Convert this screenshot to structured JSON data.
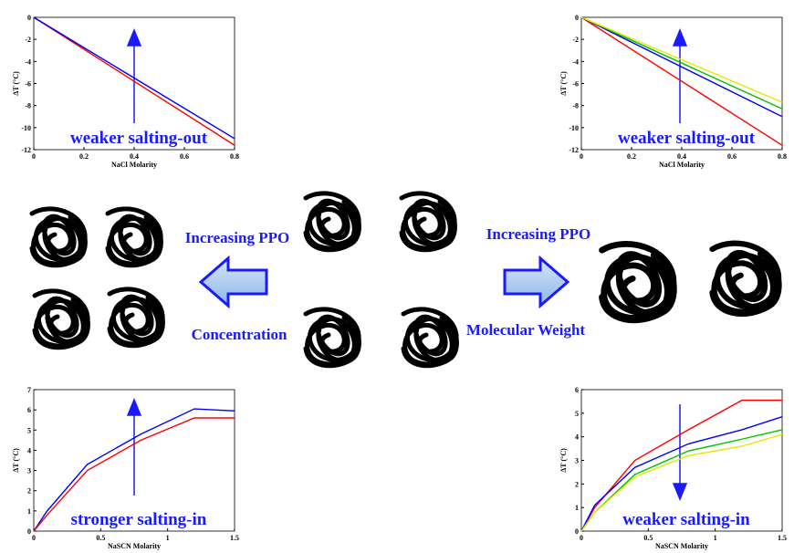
{
  "chart_data": [
    {
      "type": "line",
      "xlabel": "NaCl Molarity",
      "ylabel": "ΔT (°C)",
      "annotation": "weaker salting-out",
      "x": [
        0,
        0.8
      ],
      "xlim": [
        0,
        0.8
      ],
      "xticks": [
        0,
        0.2,
        0.4,
        0.6,
        0.8
      ],
      "ylim": [
        -12,
        0
      ],
      "yticks": [
        -12,
        -10,
        -8,
        -6,
        -4,
        -2,
        0
      ],
      "series": [
        {
          "color": "#ff0000",
          "values": [
            0,
            -11.6
          ]
        },
        {
          "color": "#0000ff",
          "values": [
            0,
            -11
          ]
        }
      ]
    },
    {
      "type": "line",
      "xlabel": "NaCl Molarity",
      "ylabel": "ΔT (°C)",
      "annotation": "weaker salting-out",
      "x": [
        0,
        0.8
      ],
      "xlim": [
        0,
        0.8
      ],
      "xticks": [
        0,
        0.2,
        0.4,
        0.6,
        0.8
      ],
      "ylim": [
        -12,
        0
      ],
      "yticks": [
        -12,
        -10,
        -8,
        -6,
        -4,
        -2,
        0
      ],
      "series": [
        {
          "color": "#ff0000",
          "values": [
            0,
            -11.6
          ]
        },
        {
          "color": "#0000ff",
          "values": [
            0,
            -9
          ]
        },
        {
          "color": "#00c000",
          "values": [
            0,
            -8.3
          ]
        },
        {
          "color": "#e6e600",
          "values": [
            0,
            -7.7
          ]
        }
      ]
    },
    {
      "type": "line",
      "xlabel": "NaSCN Molarity",
      "ylabel": "ΔT (°C)",
      "annotation": "stronger salting-in",
      "x": [
        0,
        0.1,
        0.4,
        0.8,
        1.2,
        1.5
      ],
      "xlim": [
        0,
        1.5
      ],
      "xticks": [
        0,
        0.5,
        1,
        1.5
      ],
      "ylim": [
        0,
        7
      ],
      "yticks": [
        0,
        1,
        2,
        3,
        4,
        5,
        6,
        7
      ],
      "series": [
        {
          "color": "#0000ff",
          "values": [
            0,
            1,
            3.3,
            4.8,
            6.05,
            5.95
          ]
        },
        {
          "color": "#ff0000",
          "values": [
            0,
            0.8,
            3.0,
            4.5,
            5.6,
            5.6
          ]
        }
      ]
    },
    {
      "type": "line",
      "xlabel": "NaSCN Molarity",
      "ylabel": "ΔT (°C)",
      "annotation": "weaker salting-in",
      "x": [
        0,
        0.1,
        0.4,
        0.8,
        1.2,
        1.5
      ],
      "xlim": [
        0,
        1.5
      ],
      "xticks": [
        0,
        0.5,
        1,
        1.5
      ],
      "ylim": [
        0,
        6
      ],
      "yticks": [
        0,
        1,
        2,
        3,
        4,
        5,
        6
      ],
      "series": [
        {
          "color": "#ff0000",
          "values": [
            0,
            1,
            3,
            4.3,
            5.55,
            5.55
          ]
        },
        {
          "color": "#0000ff",
          "values": [
            0,
            1.1,
            2.7,
            3.7,
            4.3,
            4.85
          ]
        },
        {
          "color": "#00c000",
          "values": [
            0,
            0.8,
            2.4,
            3.4,
            3.9,
            4.3
          ]
        },
        {
          "color": "#e6e600",
          "values": [
            0,
            0.8,
            2.3,
            3.2,
            3.6,
            4.1
          ]
        }
      ]
    }
  ],
  "labels": {
    "left_top": "Increasing PPO",
    "left_bottom": "Concentration",
    "right_top": "Increasing PPO",
    "right_bottom": "Molecular Weight"
  }
}
